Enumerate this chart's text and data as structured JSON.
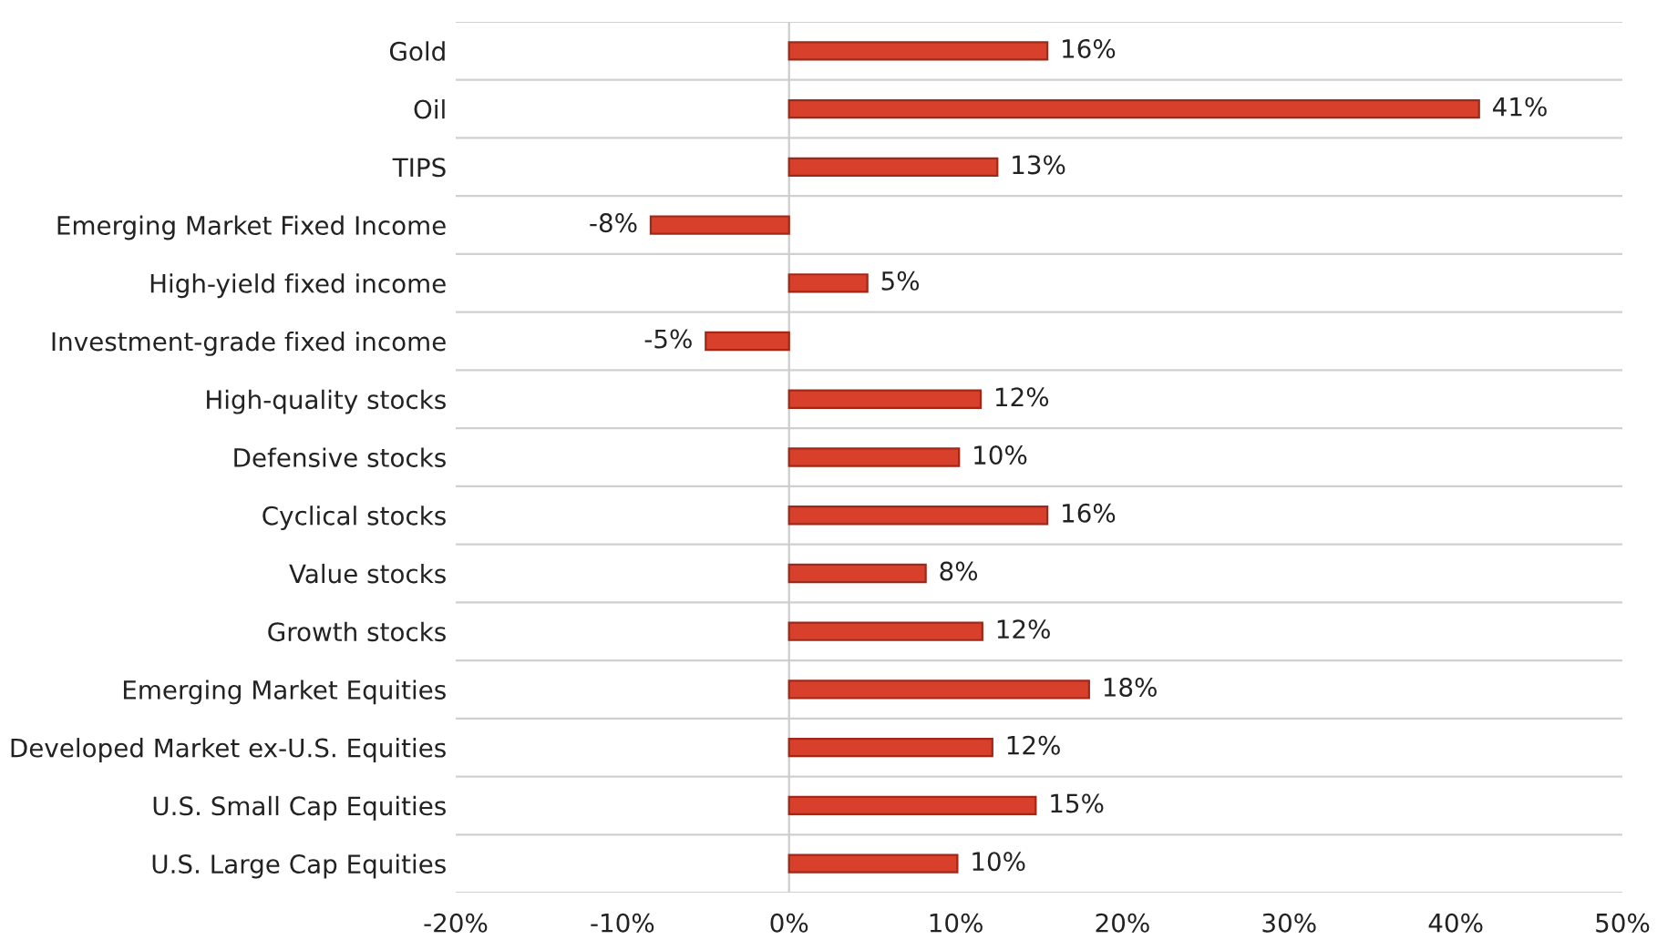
{
  "chart_data": {
    "type": "bar",
    "orientation": "horizontal",
    "categories": [
      "Gold",
      "Oil",
      "TIPS",
      "Emerging Market Fixed Income",
      "High-yield fixed income",
      "Investment-grade fixed income",
      "High-quality stocks",
      "Defensive stocks",
      "Cyclical stocks",
      "Value stocks",
      "Growth stocks",
      "Emerging Market Equities",
      "Developed Market ex-U.S. Equities",
      "U.S. Small Cap Equities",
      "U.S. Large Cap Equities"
    ],
    "values": [
      15.5,
      41.4,
      12.5,
      -8.3,
      4.7,
      -5.0,
      11.5,
      10.2,
      15.5,
      8.2,
      11.6,
      18.0,
      12.2,
      14.8,
      10.1
    ],
    "value_labels": [
      "16%",
      "41%",
      "13%",
      "-8%",
      "5%",
      "-5%",
      "12%",
      "10%",
      "16%",
      "8%",
      "12%",
      "18%",
      "12%",
      "15%",
      "10%"
    ],
    "color": "#d9402b",
    "xlim": [
      -20,
      50
    ],
    "xticks": [
      {
        "value": -20,
        "label": "-20%"
      },
      {
        "value": -10,
        "label": "-10%"
      },
      {
        "value": 0,
        "label": "0%"
      },
      {
        "value": 10,
        "label": "10%"
      },
      {
        "value": 20,
        "label": "20%"
      },
      {
        "value": 30,
        "label": "30%"
      },
      {
        "value": 40,
        "label": "40%"
      },
      {
        "value": 50,
        "label": "50%"
      }
    ],
    "grid": "y",
    "legend": false
  }
}
